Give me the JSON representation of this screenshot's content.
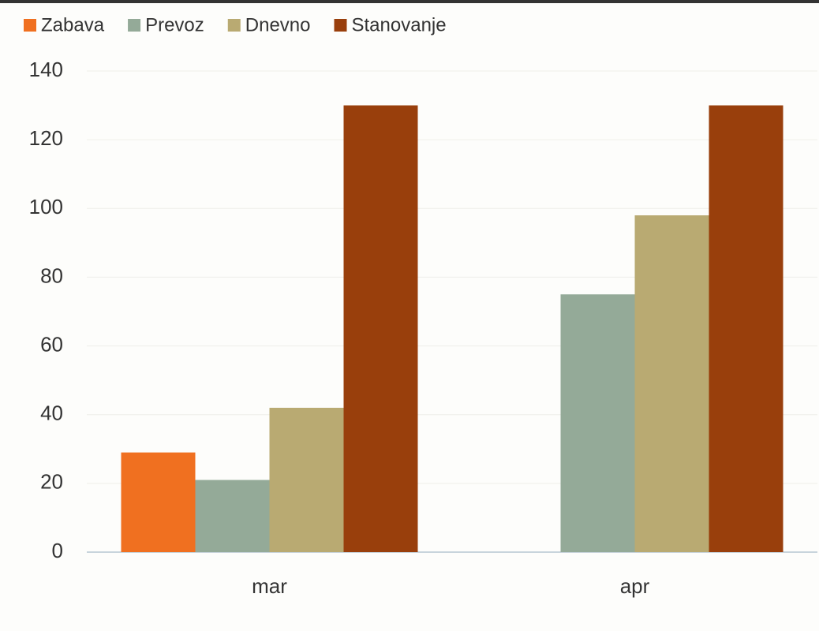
{
  "chart_data": {
    "type": "bar",
    "categories": [
      "mar",
      "apr"
    ],
    "series": [
      {
        "name": "Zabava",
        "color": "#f07020",
        "values": [
          29,
          null
        ]
      },
      {
        "name": "Prevoz",
        "color": "#94aa98",
        "values": [
          21,
          75
        ]
      },
      {
        "name": "Dnevno",
        "color": "#b9aa72",
        "values": [
          42,
          98
        ]
      },
      {
        "name": "Stanovanje",
        "color": "#993f0c",
        "values": [
          130,
          130
        ]
      }
    ],
    "ylim": [
      0,
      140
    ],
    "yticks": [
      0,
      20,
      40,
      60,
      80,
      100,
      120,
      140
    ],
    "grid": true,
    "legend": "top"
  }
}
